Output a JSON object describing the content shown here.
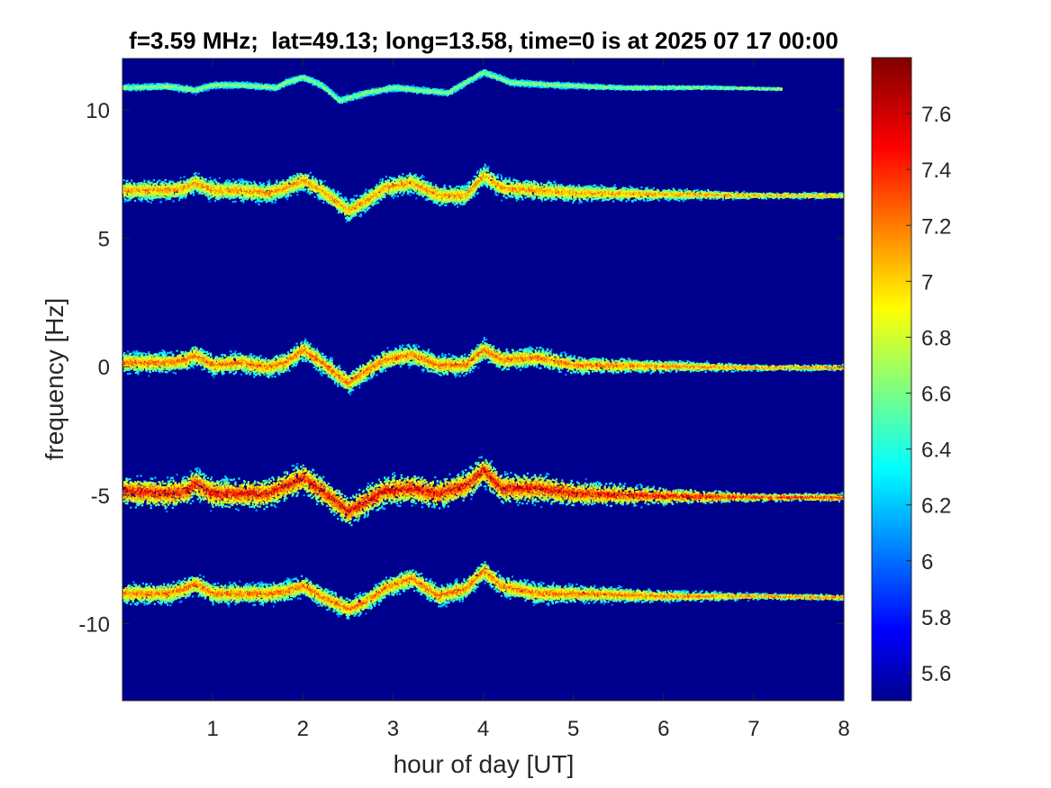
{
  "chart_data": {
    "type": "heatmap",
    "title": "f=3.59 MHz;  lat=49.13; long=13.58, time=0 is at 2025 07 17 00:00",
    "xlabel": "hour of day [UT]",
    "ylabel": "frequency [Hz]",
    "xlim": [
      0,
      8
    ],
    "ylim": [
      -13,
      12
    ],
    "xticks": [
      1,
      2,
      3,
      4,
      5,
      6,
      7,
      8
    ],
    "xtick_labels": [
      "1",
      "2",
      "3",
      "4",
      "5",
      "6",
      "7",
      "8"
    ],
    "yticks": [
      10,
      5,
      0,
      -5,
      -10
    ],
    "ytick_labels": [
      "10",
      "5",
      "0",
      "-5",
      "-10"
    ],
    "colormap": "jet",
    "background_color": "#00008f",
    "colorbar": {
      "range": [
        5.5,
        7.8
      ],
      "ticks": [
        7.6,
        7.4,
        7.2,
        7,
        6.8,
        6.6,
        6.4,
        6.2,
        6,
        5.8,
        5.6
      ],
      "tick_labels": [
        "7.6",
        "7.4",
        "7.2",
        "7",
        "6.8",
        "6.6",
        "6.4",
        "6.2",
        "6",
        "5.8",
        "5.6"
      ]
    },
    "series": [
      {
        "center_freq": 10.9,
        "intensity": 0.55,
        "spread": 0.1,
        "end_hour": 7.3,
        "points": [
          [
            0,
            10.9
          ],
          [
            0.5,
            10.95
          ],
          [
            0.8,
            10.8
          ],
          [
            1.0,
            11.0
          ],
          [
            1.3,
            11.0
          ],
          [
            1.7,
            10.9
          ],
          [
            1.8,
            11.1
          ],
          [
            2.0,
            11.3
          ],
          [
            2.2,
            11.0
          ],
          [
            2.4,
            10.4
          ],
          [
            2.7,
            10.7
          ],
          [
            3.0,
            10.9
          ],
          [
            3.3,
            10.8
          ],
          [
            3.6,
            10.7
          ],
          [
            3.8,
            11.1
          ],
          [
            4.0,
            11.5
          ],
          [
            4.3,
            11.1
          ],
          [
            4.8,
            11.0
          ],
          [
            5.5,
            10.9
          ],
          [
            6.5,
            10.9
          ],
          [
            7.3,
            10.85
          ]
        ]
      },
      {
        "center_freq": 6.9,
        "intensity": 0.8,
        "spread": 0.35,
        "end_hour": 8,
        "points": [
          [
            0,
            6.9
          ],
          [
            0.5,
            6.9
          ],
          [
            0.7,
            7.0
          ],
          [
            0.8,
            7.2
          ],
          [
            1.0,
            6.9
          ],
          [
            1.3,
            6.9
          ],
          [
            1.6,
            6.8
          ],
          [
            1.8,
            7.0
          ],
          [
            2.0,
            7.3
          ],
          [
            2.2,
            6.9
          ],
          [
            2.5,
            6.1
          ],
          [
            2.7,
            6.5
          ],
          [
            2.9,
            7.0
          ],
          [
            3.2,
            7.2
          ],
          [
            3.5,
            6.7
          ],
          [
            3.8,
            6.7
          ],
          [
            4.0,
            7.5
          ],
          [
            4.2,
            7.0
          ],
          [
            4.6,
            6.9
          ],
          [
            5.0,
            6.8
          ],
          [
            6.0,
            6.75
          ],
          [
            7.0,
            6.7
          ],
          [
            8.0,
            6.7
          ]
        ]
      },
      {
        "center_freq": 0.2,
        "intensity": 0.85,
        "spread": 0.35,
        "end_hour": 8,
        "points": [
          [
            0,
            0.2
          ],
          [
            0.5,
            0.2
          ],
          [
            0.7,
            0.3
          ],
          [
            0.8,
            0.5
          ],
          [
            1.0,
            0.1
          ],
          [
            1.3,
            0.2
          ],
          [
            1.6,
            0.0
          ],
          [
            1.8,
            0.2
          ],
          [
            2.0,
            0.7
          ],
          [
            2.2,
            0.2
          ],
          [
            2.5,
            -0.6
          ],
          [
            2.7,
            -0.1
          ],
          [
            2.9,
            0.3
          ],
          [
            3.2,
            0.5
          ],
          [
            3.5,
            0.1
          ],
          [
            3.8,
            0.1
          ],
          [
            4.0,
            0.7
          ],
          [
            4.2,
            0.3
          ],
          [
            4.6,
            0.4
          ],
          [
            5.0,
            0.1
          ],
          [
            6.0,
            0.05
          ],
          [
            7.0,
            0.0
          ],
          [
            8.0,
            0.0
          ]
        ]
      },
      {
        "center_freq": -4.8,
        "intensity": 1.0,
        "spread": 0.5,
        "end_hour": 8,
        "points": [
          [
            0,
            -4.8
          ],
          [
            0.5,
            -4.9
          ],
          [
            0.7,
            -4.8
          ],
          [
            0.8,
            -4.5
          ],
          [
            1.0,
            -4.9
          ],
          [
            1.3,
            -4.9
          ],
          [
            1.6,
            -4.9
          ],
          [
            1.8,
            -4.6
          ],
          [
            2.0,
            -4.3
          ],
          [
            2.2,
            -4.8
          ],
          [
            2.5,
            -5.6
          ],
          [
            2.7,
            -5.2
          ],
          [
            2.9,
            -4.8
          ],
          [
            3.2,
            -4.7
          ],
          [
            3.5,
            -4.9
          ],
          [
            3.8,
            -4.6
          ],
          [
            4.0,
            -4.0
          ],
          [
            4.2,
            -4.7
          ],
          [
            4.6,
            -4.7
          ],
          [
            5.0,
            -4.9
          ],
          [
            6.0,
            -5.0
          ],
          [
            7.0,
            -5.05
          ],
          [
            8.0,
            -5.05
          ]
        ]
      },
      {
        "center_freq": -8.8,
        "intensity": 0.85,
        "spread": 0.35,
        "end_hour": 8,
        "points": [
          [
            0,
            -8.8
          ],
          [
            0.5,
            -8.8
          ],
          [
            0.7,
            -8.6
          ],
          [
            0.8,
            -8.4
          ],
          [
            1.0,
            -8.8
          ],
          [
            1.3,
            -8.8
          ],
          [
            1.6,
            -8.8
          ],
          [
            1.8,
            -8.7
          ],
          [
            2.0,
            -8.5
          ],
          [
            2.2,
            -8.9
          ],
          [
            2.5,
            -9.4
          ],
          [
            2.7,
            -9.1
          ],
          [
            2.9,
            -8.6
          ],
          [
            3.2,
            -8.2
          ],
          [
            3.5,
            -8.9
          ],
          [
            3.8,
            -8.6
          ],
          [
            4.0,
            -7.9
          ],
          [
            4.2,
            -8.5
          ],
          [
            4.6,
            -8.8
          ],
          [
            5.0,
            -8.8
          ],
          [
            6.0,
            -8.9
          ],
          [
            7.0,
            -8.9
          ],
          [
            8.0,
            -8.95
          ]
        ]
      }
    ]
  }
}
